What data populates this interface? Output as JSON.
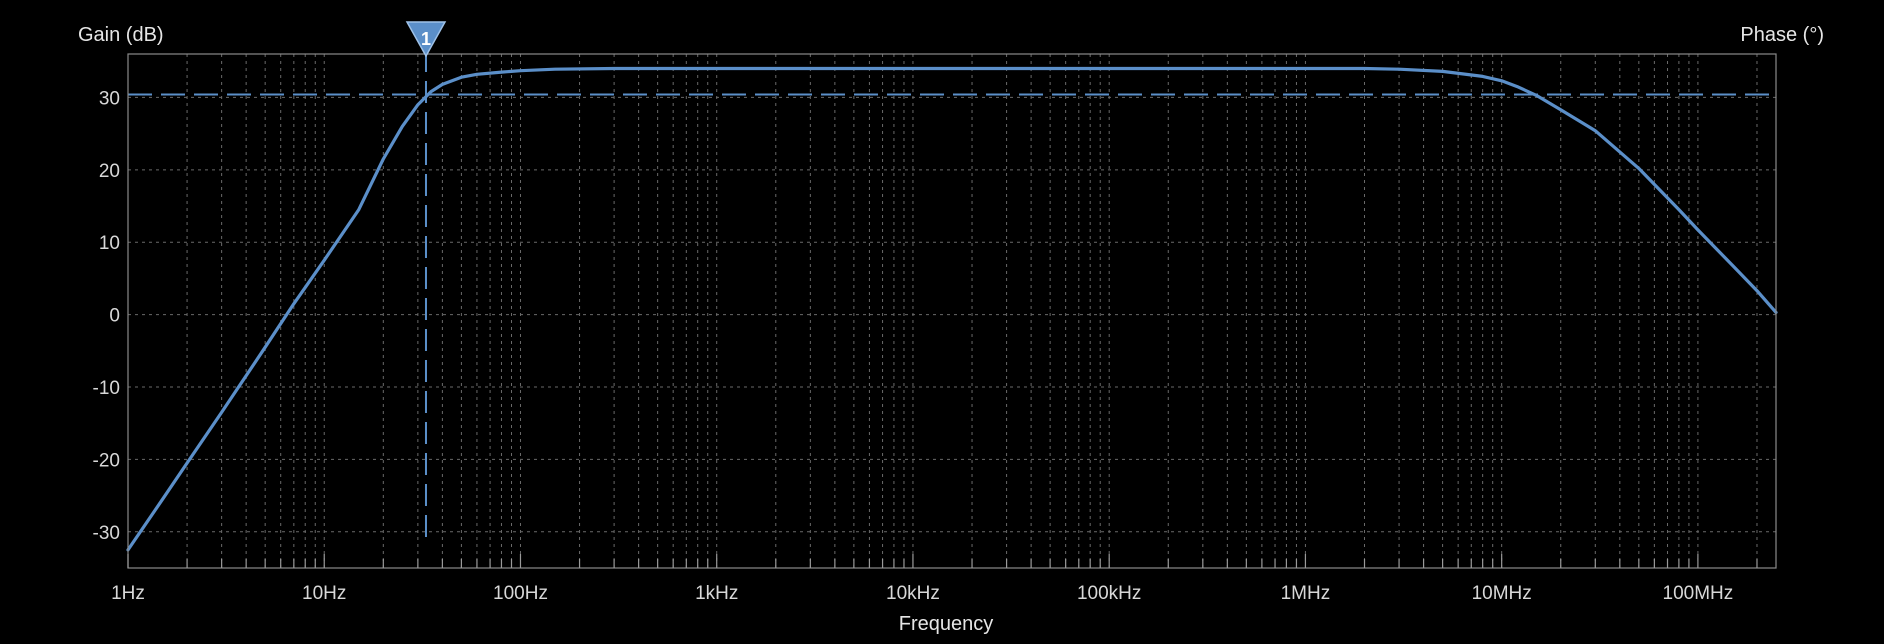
{
  "chart_data": {
    "type": "line",
    "title": "",
    "xlabel": "Frequency",
    "ylabel": "Gain (dB)",
    "y2label": "Phase (°)",
    "xscale": "log",
    "xlim": [
      1,
      250000000
    ],
    "ylim": [
      -35,
      36
    ],
    "grid": true,
    "x_ticks": [
      {
        "value": 1,
        "label": "1Hz"
      },
      {
        "value": 10,
        "label": "10Hz"
      },
      {
        "value": 100,
        "label": "100Hz"
      },
      {
        "value": 1000,
        "label": "1kHz"
      },
      {
        "value": 10000,
        "label": "10kHz"
      },
      {
        "value": 100000,
        "label": "100kHz"
      },
      {
        "value": 1000000,
        "label": "1MHz"
      },
      {
        "value": 10000000,
        "label": "10MHz"
      },
      {
        "value": 100000000,
        "label": "100MHz"
      }
    ],
    "y_ticks": [
      30,
      20,
      10,
      0,
      -10,
      -20,
      -30
    ],
    "reference_level": 30.4,
    "marker": {
      "label": "1",
      "x": 33
    },
    "series": [
      {
        "color": "#5b8fc9",
        "x": [
          1,
          1.5,
          2,
          3,
          5,
          7,
          10,
          15,
          20,
          25,
          30,
          35,
          40,
          50,
          60,
          80,
          100,
          150,
          300,
          1000,
          10000,
          100000,
          1000000,
          2000000,
          3000000,
          5000000,
          8000000,
          10000000,
          12000000,
          15000000,
          20000000,
          30000000,
          50000000,
          80000000,
          100000000,
          150000000,
          200000000,
          250000000
        ],
        "values": [
          -32.5,
          -25.5,
          -20.5,
          -13.5,
          -4.5,
          1.5,
          7.5,
          14.5,
          21.5,
          26,
          29,
          30.8,
          31.8,
          32.8,
          33.2,
          33.5,
          33.7,
          33.9,
          34,
          34,
          34,
          34,
          34,
          34,
          33.9,
          33.6,
          32.9,
          32.3,
          31.5,
          30.3,
          28.3,
          25.4,
          20.2,
          14.5,
          11.7,
          6.8,
          3.3,
          0.3
        ]
      }
    ]
  }
}
